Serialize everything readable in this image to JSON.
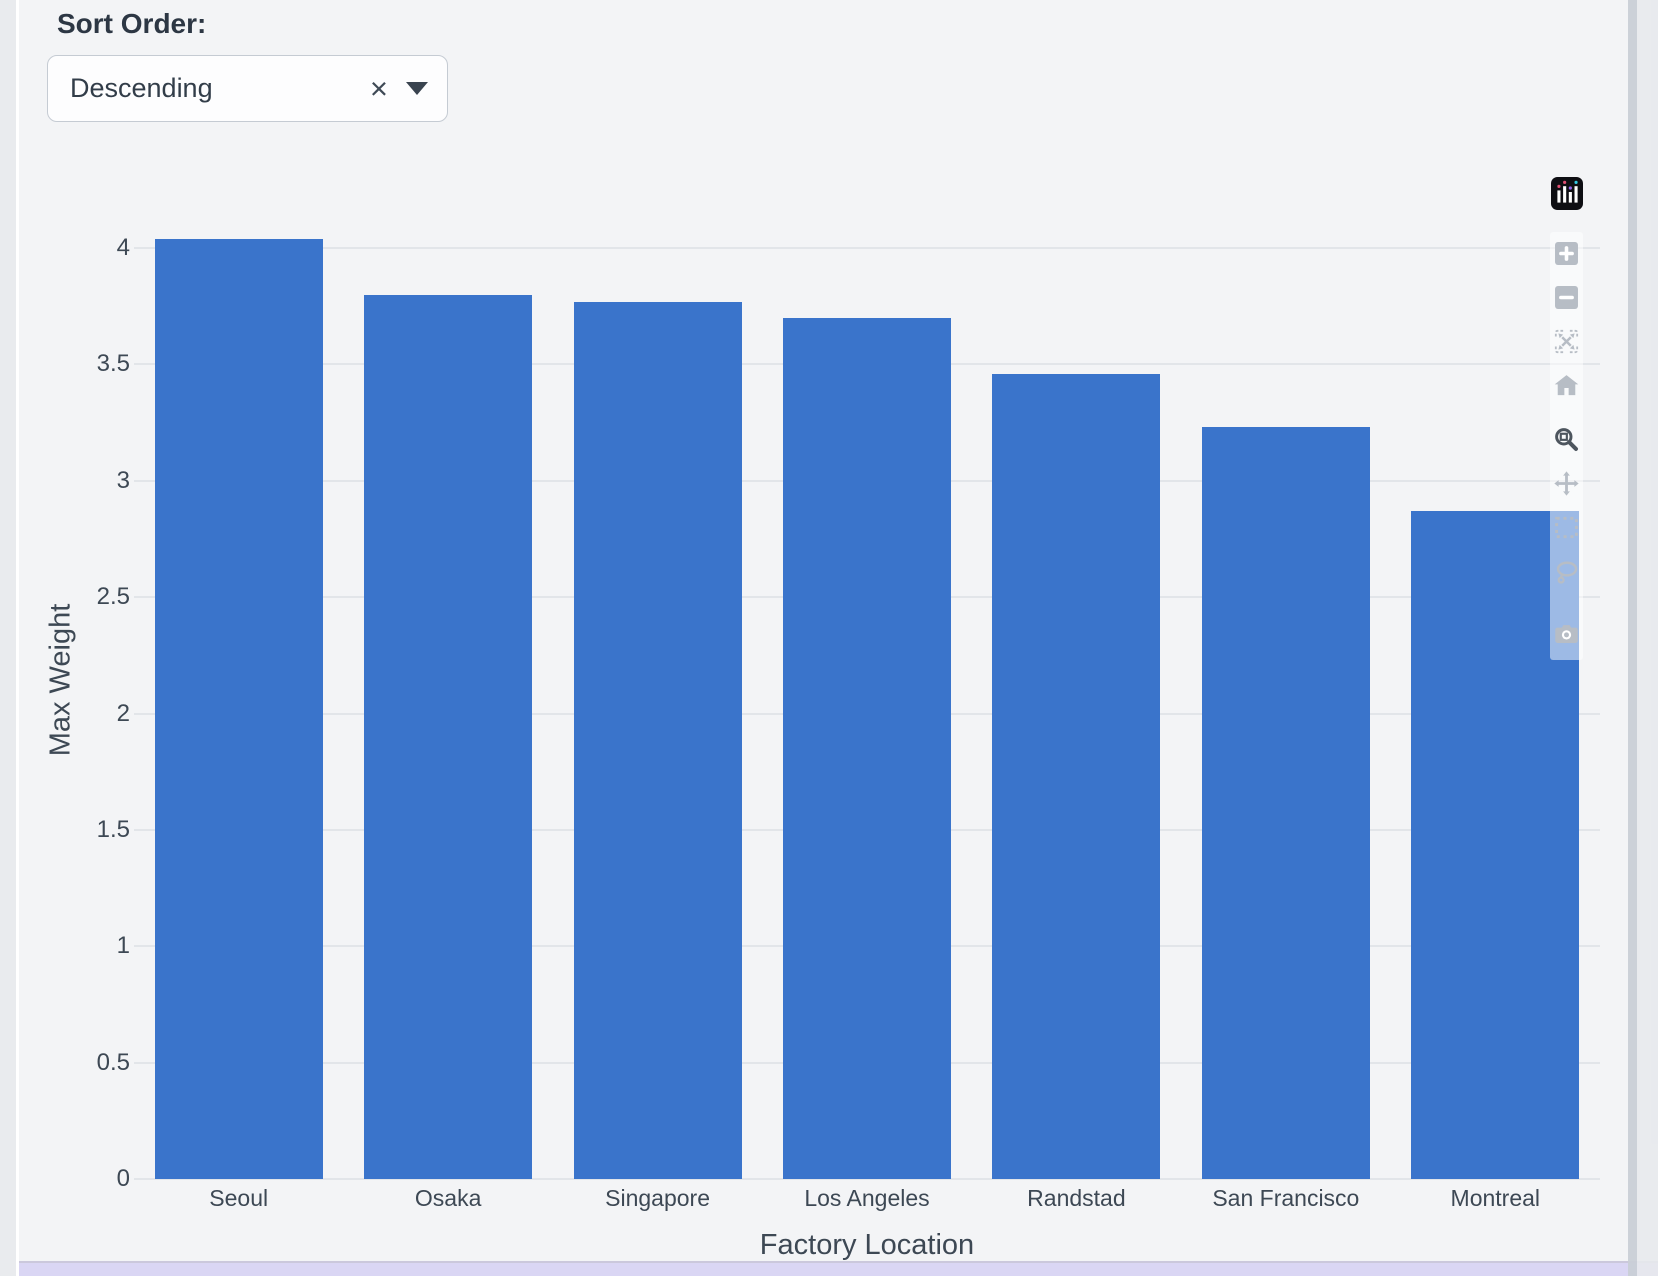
{
  "controls": {
    "sort_label": "Sort Order:",
    "dropdown": {
      "value": "Descending",
      "clear_icon": "×"
    }
  },
  "chart_data": {
    "type": "bar",
    "categories": [
      "Seoul",
      "Osaka",
      "Singapore",
      "Los Angeles",
      "Randstad",
      "San Francisco",
      "Montreal"
    ],
    "values": [
      4.04,
      3.8,
      3.77,
      3.7,
      3.46,
      3.23,
      2.87
    ],
    "xlabel": "Factory Location",
    "ylabel": "Max Weight",
    "yticks": [
      0,
      0.5,
      1,
      1.5,
      2,
      2.5,
      3,
      3.5,
      4
    ],
    "ylim": [
      0,
      4.33
    ],
    "grid": true,
    "legend": false,
    "bar_color": "#3a74cb"
  },
  "modebar": {
    "logo_icon": "plotly-logo",
    "button_groups": [
      [
        "zoom-in",
        "zoom-out",
        "autoscale",
        "reset-axes-home"
      ],
      [
        "zoom-mode",
        "pan",
        "box-select",
        "lasso-select"
      ],
      [
        "download-png-camera"
      ]
    ],
    "active_button": "zoom-mode"
  },
  "colors": {
    "bar": "#3a74cb",
    "page_background": "#f3f4f6",
    "gridline": "#e2e5e9",
    "chart_text": "#3d4854",
    "modebar_inactive": "#b7bdc5",
    "modebar_active": "#4d555e",
    "bottom_strip": "#dad6f4"
  }
}
